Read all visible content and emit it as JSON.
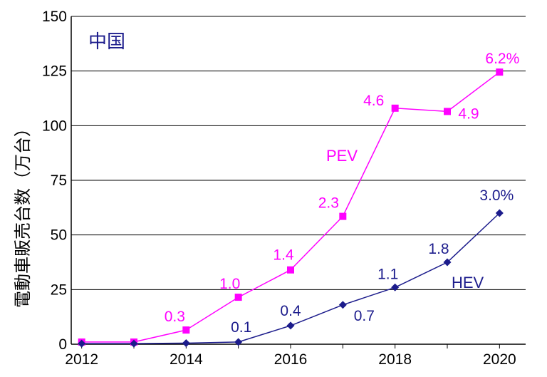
{
  "chart_data": {
    "type": "line",
    "region_label": "中国",
    "ylabel": "電動車販売台数（万台）",
    "xlabel": "",
    "ylim": [
      0,
      150
    ],
    "yticks": [
      0,
      25,
      50,
      75,
      100,
      125,
      150
    ],
    "xlim": [
      2011.8,
      2020.5
    ],
    "xticks": [
      2012,
      2014,
      2016,
      2018,
      2020
    ],
    "grid": true,
    "series": [
      {
        "name": "PEV",
        "color": "#ff00ff",
        "marker": "square",
        "x": [
          2012,
          2013,
          2014,
          2015,
          2016,
          2017,
          2018,
          2019,
          2020
        ],
        "y": [
          1.0,
          1.0,
          6.5,
          21.5,
          34,
          58.5,
          108,
          106.5,
          124.5
        ],
        "data_labels": [
          "",
          "",
          "0.3",
          "1.0",
          "1.4",
          "2.3",
          "4.6",
          "4.9",
          "6.2%"
        ]
      },
      {
        "name": "HEV",
        "color": "#1c1c8c",
        "marker": "diamond",
        "x": [
          2012,
          2013,
          2014,
          2015,
          2016,
          2017,
          2018,
          2019,
          2020
        ],
        "y": [
          0.3,
          0.3,
          0.5,
          1.0,
          8.5,
          18,
          26,
          37.5,
          60
        ],
        "data_labels": [
          "",
          "",
          "",
          "0.1",
          "0.4",
          "0.7",
          "1.1",
          "1.8",
          "3.0%"
        ]
      }
    ]
  }
}
